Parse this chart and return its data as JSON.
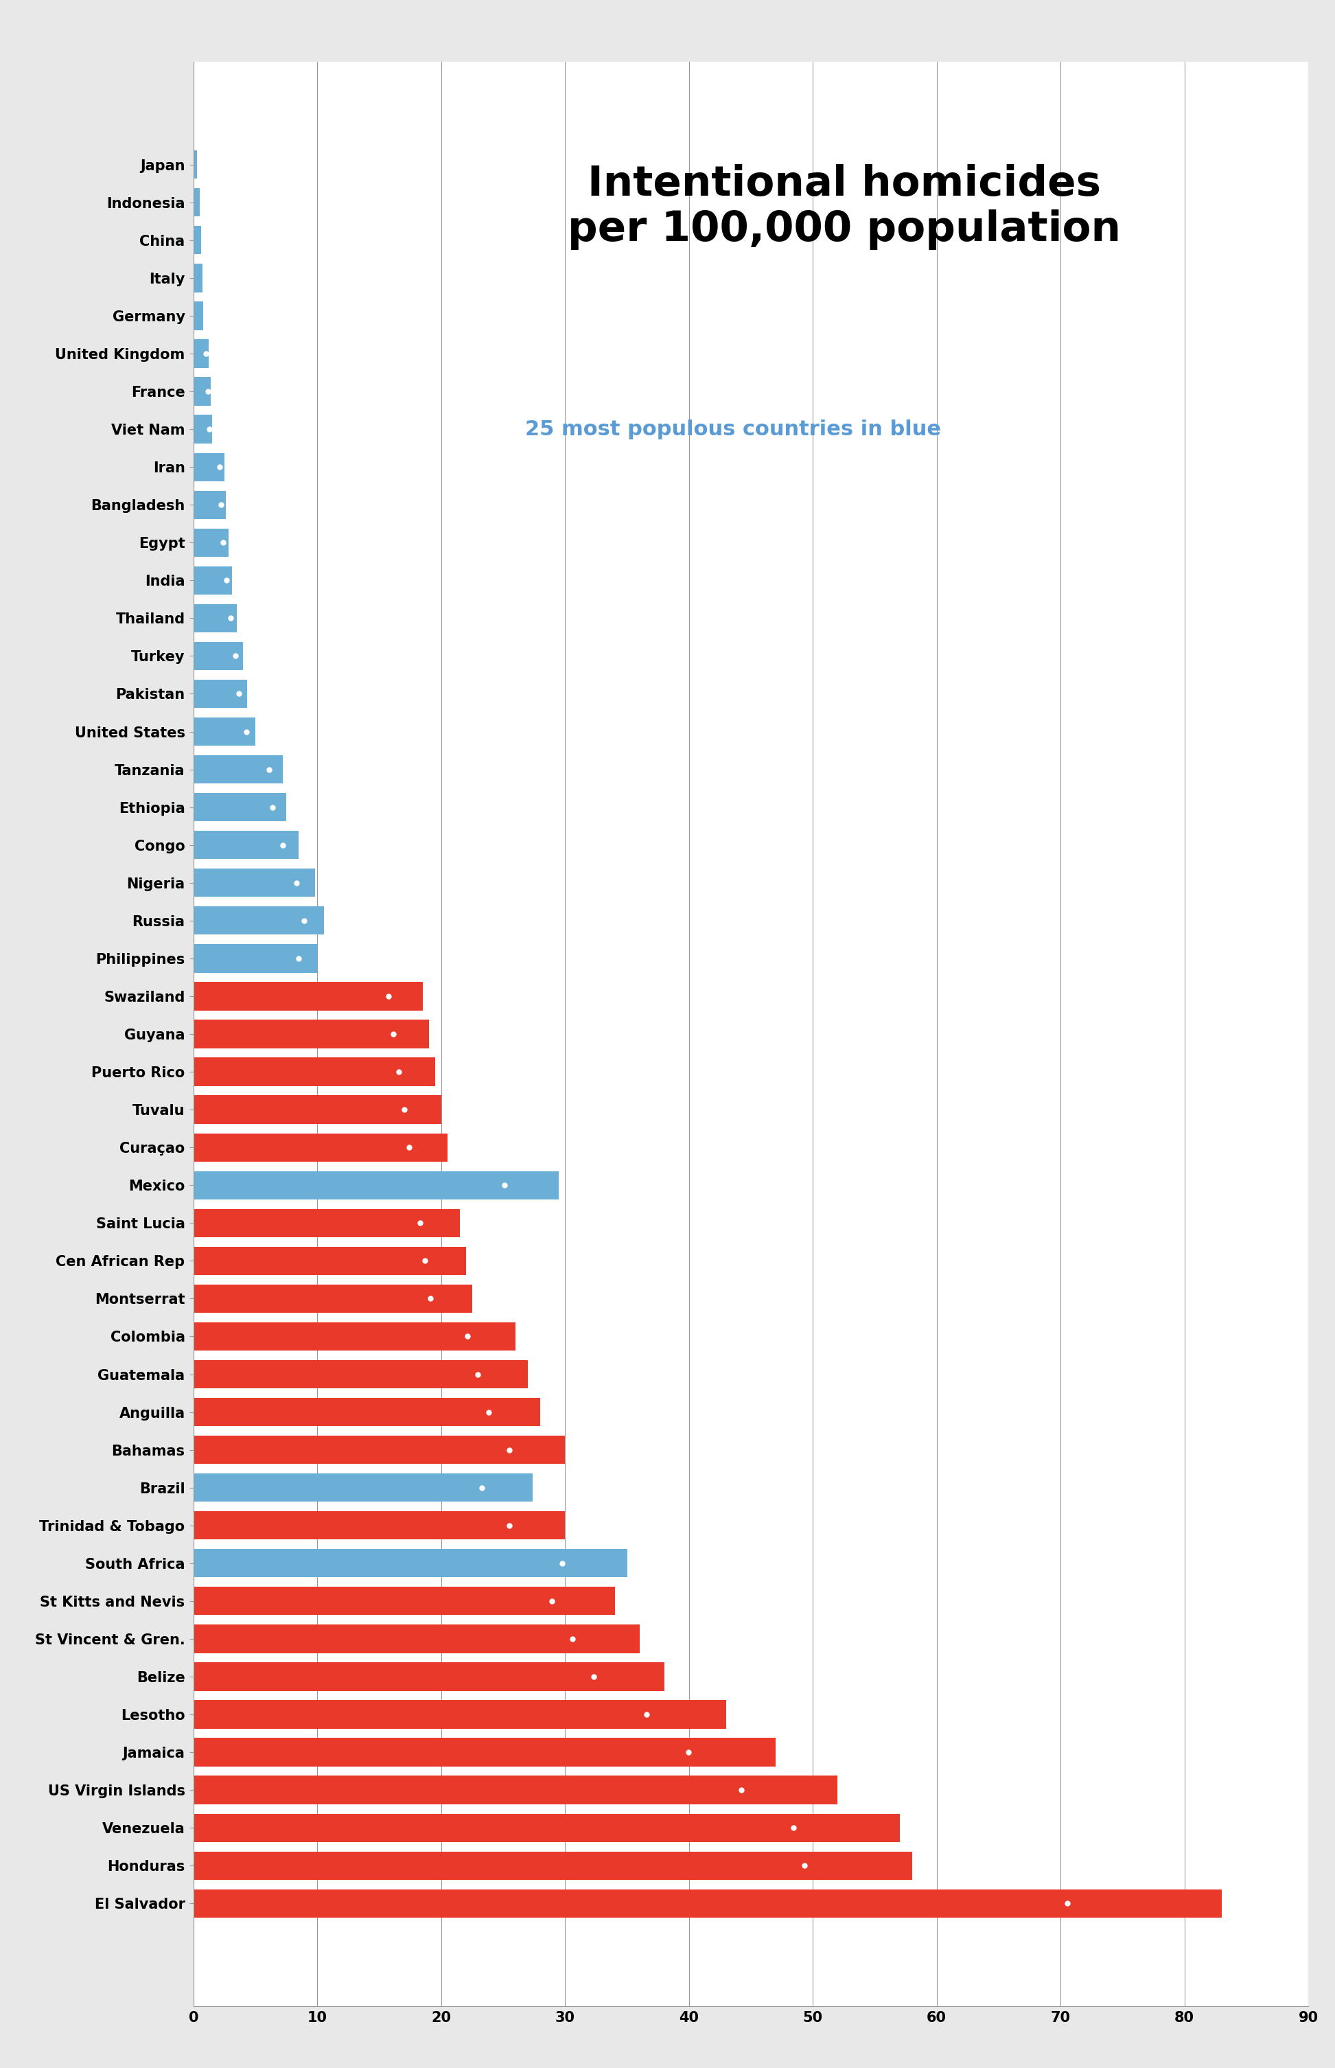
{
  "title": "Intentional homicides\nper 100,000 population",
  "subtitle": "25 most populous countries in blue",
  "countries": [
    "Japan",
    "Indonesia",
    "China",
    "Italy",
    "Germany",
    "United Kingdom",
    "France",
    "Viet Nam",
    "Iran",
    "Bangladesh",
    "Egypt",
    "India",
    "Thailand",
    "Turkey",
    "Pakistan",
    "United States",
    "Tanzania",
    "Ethiopia",
    "Congo",
    "Nigeria",
    "Russia",
    "Philippines",
    "Swaziland",
    "Guyana",
    "Puerto Rico",
    "Tuvalu",
    "Curaçao",
    "Mexico",
    "Saint Lucia",
    "Cen African Rep",
    "Montserrat",
    "Colombia",
    "Guatemala",
    "Anguilla",
    "Bahamas",
    "Brazil",
    "Trinidad & Tobago",
    "South Africa",
    "St Kitts and Nevis",
    "St Vincent & Gren.",
    "Belize",
    "Lesotho",
    "Jamaica",
    "US Virgin Islands",
    "Venezuela",
    "Honduras",
    "El Salvador"
  ],
  "values": [
    0.3,
    0.5,
    0.6,
    0.7,
    0.8,
    1.2,
    1.4,
    1.5,
    2.5,
    2.6,
    2.8,
    3.1,
    3.5,
    4.0,
    4.3,
    5.0,
    7.2,
    7.5,
    8.5,
    9.8,
    10.5,
    10.0,
    18.5,
    19.0,
    19.5,
    20.0,
    20.5,
    29.5,
    21.5,
    22.0,
    22.5,
    26.0,
    27.0,
    28.0,
    30.0,
    27.4,
    30.0,
    35.0,
    34.0,
    36.0,
    38.0,
    43.0,
    47.0,
    52.0,
    57.0,
    58.0,
    83.0
  ],
  "is_populous": [
    true,
    true,
    true,
    true,
    true,
    true,
    true,
    true,
    true,
    true,
    true,
    true,
    true,
    true,
    true,
    true,
    true,
    true,
    true,
    true,
    true,
    true,
    false,
    false,
    false,
    false,
    false,
    true,
    false,
    false,
    false,
    false,
    false,
    false,
    false,
    true,
    false,
    true,
    false,
    false,
    false,
    false,
    false,
    false,
    false,
    false,
    false
  ],
  "bar_color_populous": "#6baed6",
  "bar_color_other": "#e8392a",
  "bg_color": "#e8e8e8",
  "plot_bg_color": "#ffffff",
  "title_color": "#000000",
  "subtitle_color": "#5b9bd5",
  "xlim": [
    0,
    90
  ],
  "xticks": [
    0,
    10,
    20,
    30,
    40,
    50,
    60,
    70,
    80,
    90
  ],
  "grid_color": "#999999"
}
